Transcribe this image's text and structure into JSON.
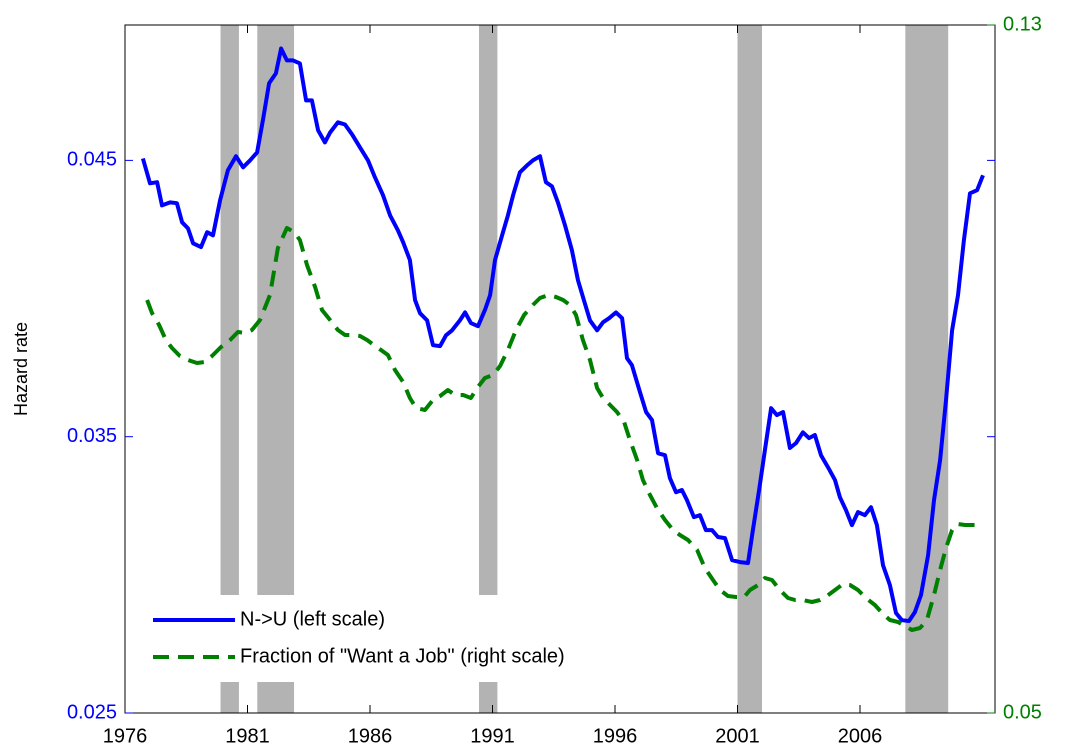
{
  "chart_data": {
    "type": "line",
    "ylabel": "Hazard rate",
    "xlim": [
      1976,
      2011.51
    ],
    "xticks": [
      1976,
      1981,
      1986,
      1991,
      1996,
      2001,
      2006
    ],
    "ylim": [
      0.025,
      0.0499
    ],
    "yticks": [
      0.025,
      0.035,
      0.045
    ],
    "y2lim": [
      0.05,
      0.13
    ],
    "y2ticks": [
      0.05,
      0.13
    ],
    "legend": "lower left",
    "recession_color": "#b3b3b3",
    "recessions": [
      [
        1979.9,
        1980.65
      ],
      [
        1981.4,
        1982.9
      ],
      [
        1990.45,
        1991.2
      ],
      [
        2001.0,
        2002.0
      ],
      [
        2007.85,
        2009.6
      ]
    ],
    "series": [
      {
        "name": "N->U (left scale)",
        "color": "#0000ff",
        "axis": "y",
        "x": [
          1976.73,
          1977.02,
          1977.31,
          1977.51,
          1977.84,
          1978.12,
          1978.33,
          1978.57,
          1978.78,
          1979.1,
          1979.35,
          1979.59,
          1979.88,
          1980.2,
          1980.53,
          1980.82,
          1981.1,
          1981.39,
          1981.63,
          1981.88,
          1982.16,
          1982.37,
          1982.61,
          1982.86,
          1983.14,
          1983.39,
          1983.63,
          1983.88,
          1984.16,
          1984.37,
          1984.69,
          1984.98,
          1985.27,
          1985.59,
          1985.92,
          1986.2,
          1986.53,
          1986.82,
          1987.14,
          1987.35,
          1987.63,
          1987.84,
          1988.04,
          1988.33,
          1988.57,
          1988.86,
          1989.1,
          1989.35,
          1989.67,
          1989.88,
          1990.12,
          1990.41,
          1990.69,
          1990.9,
          1991.1,
          1991.39,
          1991.63,
          1991.84,
          1992.12,
          1992.41,
          1992.65,
          1992.94,
          1993.18,
          1993.43,
          1993.67,
          1993.96,
          1994.24,
          1994.49,
          1994.73,
          1994.98,
          1995.27,
          1995.51,
          1995.76,
          1996.04,
          1996.29,
          1996.49,
          1996.69,
          1997.02,
          1997.27,
          1997.51,
          1997.76,
          1998.04,
          1998.24,
          1998.49,
          1998.73,
          1998.94,
          1999.22,
          1999.47,
          1999.71,
          1999.96,
          2000.2,
          2000.49,
          2000.78,
          2001.1,
          2001.43,
          2001.63,
          2001.88,
          2002.12,
          2002.37,
          2002.61,
          2002.86,
          2003.14,
          2003.39,
          2003.67,
          2003.92,
          2004.16,
          2004.41,
          2004.69,
          2004.98,
          2005.18,
          2005.43,
          2005.67,
          2005.92,
          2006.2,
          2006.45,
          2006.69,
          2006.94,
          2007.22,
          2007.47,
          2007.71,
          2008.0,
          2008.24,
          2008.49,
          2008.78,
          2009.02,
          2009.27,
          2009.51,
          2009.76,
          2010.0,
          2010.24,
          2010.49,
          2010.78,
          2011.02
        ],
        "values": [
          0.04507,
          0.04417,
          0.04421,
          0.04337,
          0.04348,
          0.04345,
          0.04276,
          0.04254,
          0.042,
          0.04186,
          0.0424,
          0.04229,
          0.04356,
          0.04464,
          0.04515,
          0.04475,
          0.045,
          0.04529,
          0.04645,
          0.04779,
          0.04815,
          0.04905,
          0.04862,
          0.04862,
          0.04851,
          0.04717,
          0.04717,
          0.04609,
          0.04565,
          0.04601,
          0.04638,
          0.0463,
          0.04594,
          0.04547,
          0.045,
          0.04439,
          0.04374,
          0.04301,
          0.04247,
          0.04204,
          0.04139,
          0.03994,
          0.03947,
          0.03921,
          0.03831,
          0.03828,
          0.03867,
          0.03885,
          0.03921,
          0.0395,
          0.03911,
          0.039,
          0.03958,
          0.04012,
          0.04139,
          0.04229,
          0.04301,
          0.04374,
          0.04457,
          0.04482,
          0.045,
          0.04515,
          0.04421,
          0.04406,
          0.04348,
          0.04265,
          0.04175,
          0.04066,
          0.03994,
          0.03921,
          0.03885,
          0.03914,
          0.03929,
          0.0395,
          0.03929,
          0.03784,
          0.03759,
          0.03661,
          0.03589,
          0.0356,
          0.0344,
          0.03433,
          0.0335,
          0.03299,
          0.03307,
          0.0327,
          0.03209,
          0.03216,
          0.03162,
          0.03162,
          0.03137,
          0.03133,
          0.03053,
          0.03046,
          0.03043,
          0.03162,
          0.03307,
          0.03451,
          0.03603,
          0.03578,
          0.03589,
          0.03459,
          0.03477,
          0.03516,
          0.03495,
          0.03506,
          0.03433,
          0.0339,
          0.03343,
          0.03281,
          0.03234,
          0.0318,
          0.03227,
          0.03216,
          0.03245,
          0.0318,
          0.03035,
          0.02963,
          0.02862,
          0.02836,
          0.02833,
          0.02865,
          0.02927,
          0.03071,
          0.0327,
          0.03415,
          0.03632,
          0.03885,
          0.04012,
          0.04211,
          0.04381,
          0.04392,
          0.04446
        ]
      },
      {
        "name": "Fraction of \"Want a Job\" (right scale)",
        "color": "#008000",
        "axis": "y2",
        "dashed": true,
        "x": [
          1976.9,
          1977.1,
          1977.39,
          1977.67,
          1977.92,
          1978.24,
          1978.57,
          1978.94,
          1979.27,
          1979.55,
          1979.92,
          1980.29,
          1980.61,
          1980.9,
          1981.18,
          1981.51,
          1981.92,
          1982.24,
          1982.61,
          1982.9,
          1983.14,
          1983.43,
          1983.76,
          1984.04,
          1984.37,
          1984.69,
          1984.98,
          1985.27,
          1985.59,
          1985.88,
          1986.16,
          1986.45,
          1986.73,
          1987.02,
          1987.35,
          1987.63,
          1987.88,
          1988.24,
          1988.57,
          1988.86,
          1989.18,
          1989.47,
          1989.8,
          1990.12,
          1990.37,
          1990.69,
          1991.02,
          1991.31,
          1991.63,
          1991.96,
          1992.29,
          1992.65,
          1992.94,
          1993.27,
          1993.59,
          1993.88,
          1994.16,
          1994.41,
          1994.69,
          1994.98,
          1995.27,
          1995.51,
          1995.8,
          1996.08,
          1996.37,
          1996.61,
          1996.9,
          1997.14,
          1997.43,
          1997.71,
          1998.04,
          1998.37,
          1998.65,
          1998.98,
          1999.35,
          1999.67,
          2000.0,
          2000.29,
          2000.61,
          2000.94,
          2001.27,
          2001.51,
          2001.84,
          2002.12,
          2002.41,
          2002.73,
          2003.06,
          2003.35,
          2003.67,
          2004.04,
          2004.37,
          2004.65,
          2004.98,
          2005.31,
          2005.59,
          2005.92,
          2006.24,
          2006.61,
          2006.94,
          2007.22,
          2007.55,
          2007.84,
          2008.12,
          2008.45,
          2008.73,
          2009.02,
          2009.27,
          2009.51,
          2009.76,
          2010.0,
          2010.29,
          2010.69
        ],
        "values": [
          0.09802,
          0.09651,
          0.09512,
          0.09337,
          0.09244,
          0.09151,
          0.09105,
          0.0907,
          0.09081,
          0.09151,
          0.09256,
          0.09337,
          0.0943,
          0.09419,
          0.09454,
          0.0957,
          0.0986,
          0.10407,
          0.1064,
          0.10593,
          0.105,
          0.10209,
          0.09953,
          0.09686,
          0.0957,
          0.09454,
          0.09395,
          0.09395,
          0.09384,
          0.09337,
          0.09279,
          0.09221,
          0.09163,
          0.08988,
          0.08849,
          0.08663,
          0.08547,
          0.08523,
          0.0864,
          0.08686,
          0.08756,
          0.08698,
          0.08698,
          0.08663,
          0.08779,
          0.08895,
          0.0893,
          0.09035,
          0.09221,
          0.09454,
          0.09628,
          0.09744,
          0.09826,
          0.0986,
          0.09837,
          0.09802,
          0.09744,
          0.09628,
          0.09337,
          0.09105,
          0.08779,
          0.08663,
          0.08581,
          0.085,
          0.08384,
          0.08174,
          0.07942,
          0.07709,
          0.07535,
          0.07384,
          0.07244,
          0.07128,
          0.0707,
          0.07012,
          0.06895,
          0.06686,
          0.06547,
          0.0643,
          0.0636,
          0.06349,
          0.06349,
          0.0643,
          0.06488,
          0.0657,
          0.06547,
          0.0643,
          0.06337,
          0.06314,
          0.06314,
          0.06291,
          0.06314,
          0.0636,
          0.0643,
          0.065,
          0.06488,
          0.0643,
          0.06337,
          0.06256,
          0.06151,
          0.06081,
          0.06058,
          0.06012,
          0.05965,
          0.05988,
          0.06081,
          0.06372,
          0.06663,
          0.06919,
          0.07128,
          0.07198,
          0.07186,
          0.07186
        ]
      }
    ]
  }
}
